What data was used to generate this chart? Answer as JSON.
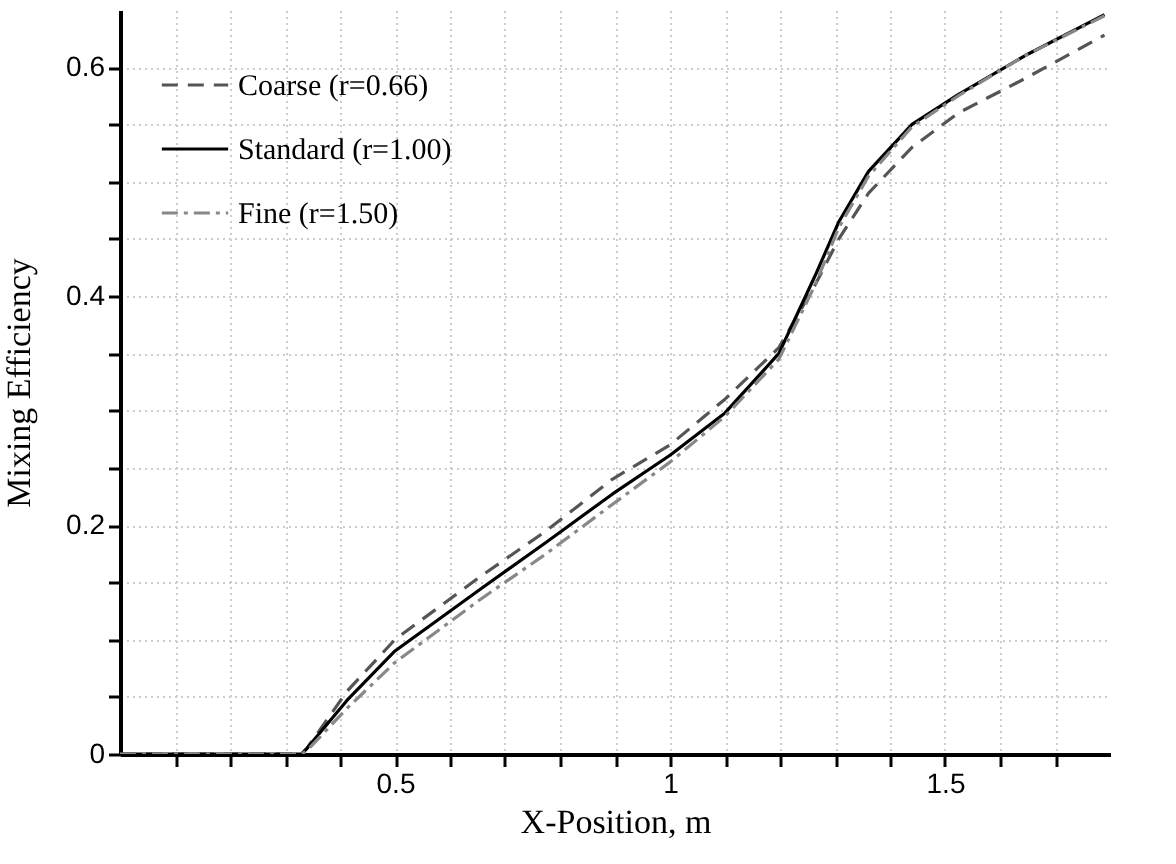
{
  "chart_data": {
    "type": "line",
    "xlabel": "X-Position, m",
    "ylabel": "Mixing Efficiency",
    "x": [
      0,
      0.33,
      0.34,
      0.413,
      0.5,
      0.655,
      0.775,
      0.895,
      1.0,
      1.1,
      1.198,
      1.264,
      1.307,
      1.361,
      1.44,
      1.524,
      1.645,
      1.79
    ],
    "series": [
      {
        "name": "Coarse (r=0.66)",
        "color": "#555555",
        "line_style": "dashed",
        "values": [
          0,
          0,
          0.005,
          0.055,
          0.1,
          0.155,
          0.195,
          0.24,
          0.27,
          0.31,
          0.355,
          0.41,
          0.45,
          0.49,
          0.53,
          0.56,
          0.59,
          0.628
        ]
      },
      {
        "name": "Standard (r=1.00)",
        "color": "#000000",
        "line_style": "solid",
        "values": [
          0,
          0,
          0.005,
          0.047,
          0.09,
          0.144,
          0.185,
          0.227,
          0.261,
          0.298,
          0.35,
          0.418,
          0.465,
          0.509,
          0.55,
          0.576,
          0.61,
          0.646
        ]
      },
      {
        "name": "Fine (r=1.50)",
        "color": "#888888",
        "line_style": "dashdot",
        "values": [
          0,
          0,
          0.003,
          0.04,
          0.08,
          0.135,
          0.175,
          0.218,
          0.255,
          0.295,
          0.345,
          0.41,
          0.46,
          0.505,
          0.548,
          0.575,
          0.61,
          0.645
        ]
      }
    ],
    "xlim": [
      0,
      1.8
    ],
    "xticks": [
      {
        "value": 0.1,
        "label": null
      },
      {
        "value": 0.2,
        "label": null
      },
      {
        "value": 0.3,
        "label": null
      },
      {
        "value": 0.4,
        "label": null
      },
      0.5,
      {
        "value": 0.6,
        "label": null
      },
      {
        "value": 0.7,
        "label": null
      },
      {
        "value": 0.8,
        "label": null
      },
      {
        "value": 0.9,
        "label": null
      },
      1,
      {
        "value": 1.1,
        "label": null
      },
      {
        "value": 1.2,
        "label": null
      },
      {
        "value": 1.3,
        "label": null
      },
      {
        "value": 1.4,
        "label": null
      },
      1.5,
      {
        "value": 1.6,
        "label": null
      },
      {
        "value": 1.7,
        "label": null
      }
    ],
    "ylim": [
      0,
      0.65
    ],
    "yticks": [
      0,
      {
        "value": 0.05,
        "label": null
      },
      {
        "value": 0.1,
        "label": null
      },
      {
        "value": 0.15,
        "label": null
      },
      0.2,
      {
        "value": 0.25,
        "label": null
      },
      {
        "value": 0.3,
        "label": null
      },
      {
        "value": 0.35,
        "label": null
      },
      0.4,
      {
        "value": 0.45,
        "label": null
      },
      {
        "value": 0.5,
        "label": null
      },
      {
        "value": 0.55,
        "label": null
      },
      0.6
    ],
    "grid": true,
    "legend": "top left"
  }
}
